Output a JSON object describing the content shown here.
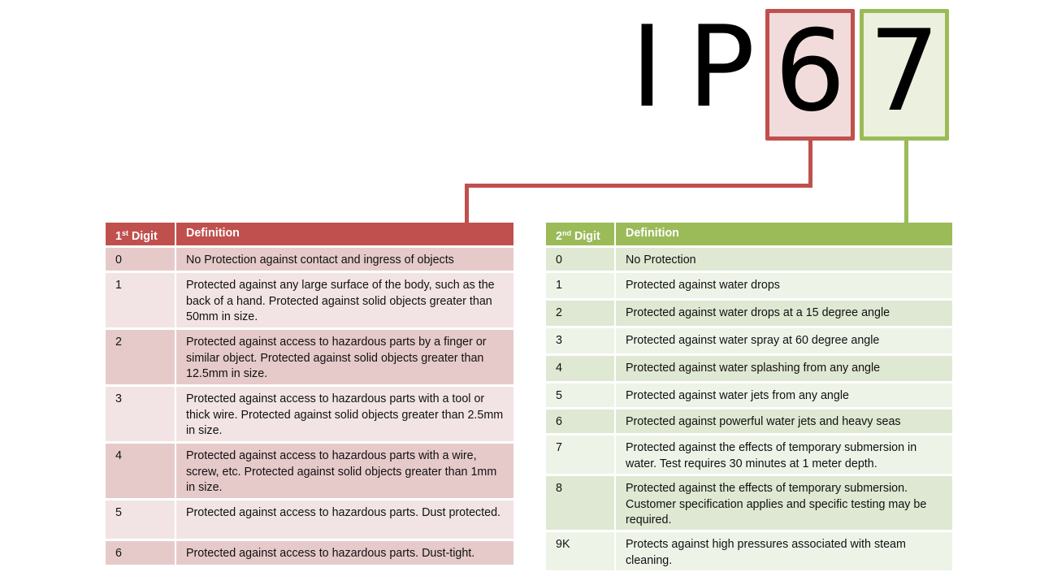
{
  "title": {
    "letters": [
      "I",
      "P"
    ],
    "first_digit": "6",
    "second_digit": "7"
  },
  "colors": {
    "first": "#c0504d",
    "second": "#9bbb59"
  },
  "first_table": {
    "header": {
      "digit_num": "1",
      "digit_sup": "st",
      "digit_word": "Digit",
      "definition": "Definition"
    },
    "rows": [
      {
        "digit": "0",
        "definition": "No Protection against contact and ingress of objects"
      },
      {
        "digit": "1",
        "definition": "Protected against any large surface of the body, such as the back of a hand. Protected against solid objects greater than 50mm in size."
      },
      {
        "digit": "2",
        "definition": "Protected against access to hazardous parts by a finger or similar object. Protected against solid objects greater than 12.5mm in size."
      },
      {
        "digit": "3",
        "definition": "Protected against access to hazardous parts with a tool or thick wire. Protected against solid objects greater than 2.5mm in size."
      },
      {
        "digit": "4",
        "definition": "Protected against access to hazardous parts with a wire, screw, etc. Protected against solid objects greater than 1mm in size."
      },
      {
        "digit": "5",
        "definition": "Protected against access to hazardous parts. Dust protected."
      },
      {
        "digit": "6",
        "definition": "Protected against access to hazardous parts. Dust-tight."
      }
    ]
  },
  "second_table": {
    "header": {
      "digit_num": "2",
      "digit_sup": "nd",
      "digit_word": "Digit",
      "definition": "Definition"
    },
    "rows": [
      {
        "digit": "0",
        "definition": "No Protection"
      },
      {
        "digit": "1",
        "definition": "Protected against water drops"
      },
      {
        "digit": "2",
        "definition": "Protected against water drops at a 15 degree angle"
      },
      {
        "digit": "3",
        "definition": "Protected against water spray at 60 degree angle"
      },
      {
        "digit": "4",
        "definition": "Protected against water splashing from any angle"
      },
      {
        "digit": "5",
        "definition": "Protected against water jets from any angle"
      },
      {
        "digit": "6",
        "definition": "Protected against powerful water jets and heavy seas"
      },
      {
        "digit": "7",
        "definition": "Protected against the effects of temporary submersion in water. Test requires 30 minutes at 1 meter depth."
      },
      {
        "digit": "8",
        "definition": "Protected against the effects of temporary submersion. Customer specification applies and specific testing may be required."
      },
      {
        "digit": "9K",
        "definition": "Protects against high pressures associated with steam cleaning."
      }
    ]
  }
}
